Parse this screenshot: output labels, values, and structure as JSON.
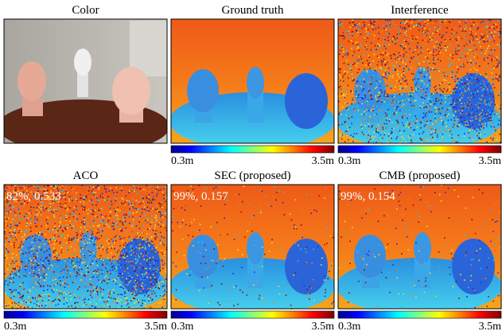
{
  "panels": [
    {
      "title": "Color"
    },
    {
      "title": "Ground truth",
      "colorbar": {
        "min": "0.3m",
        "max": "3.5m"
      }
    },
    {
      "title": "Interference",
      "colorbar": {
        "min": "0.3m",
        "max": "3.5m"
      }
    },
    {
      "title": "ACO",
      "overlay": "82%, 0.533",
      "colorbar": {
        "min": "0.3m",
        "max": "3.5m"
      }
    },
    {
      "title": "SEC (proposed)",
      "overlay": "99%, 0.157",
      "colorbar": {
        "min": "0.3m",
        "max": "3.5m"
      }
    },
    {
      "title": "CMB (proposed)",
      "overlay": "99%, 0.154",
      "colorbar": {
        "min": "0.3m",
        "max": "3.5m"
      }
    }
  ]
}
